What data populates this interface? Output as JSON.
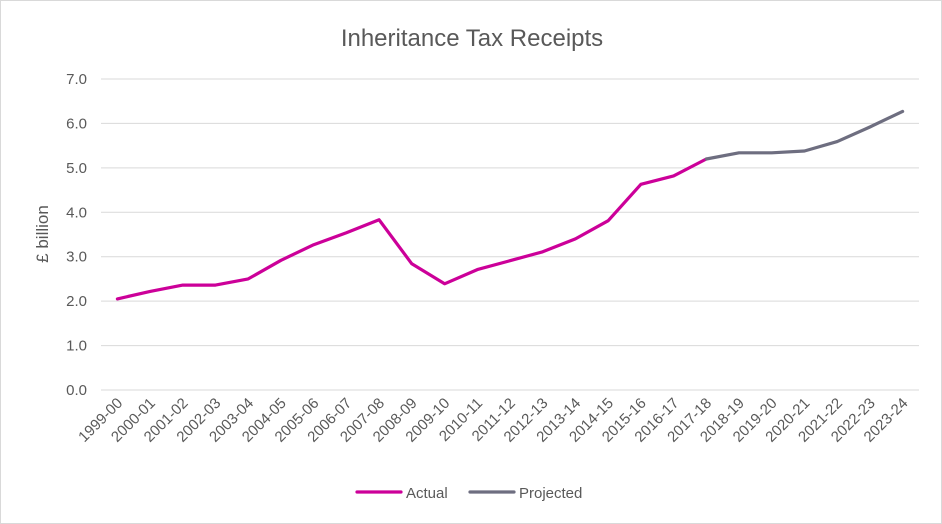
{
  "chart_data": {
    "type": "line",
    "title": "Inheritance Tax Receipts",
    "xlabel": "",
    "ylabel": "£ billion",
    "ylim": [
      0,
      7
    ],
    "yticks": [
      "0.0",
      "1.0",
      "2.0",
      "3.0",
      "4.0",
      "5.0",
      "6.0",
      "7.0"
    ],
    "grid": true,
    "legend_position": "bottom",
    "categories": [
      "1999-00",
      "2000-01",
      "2001-02",
      "2002-03",
      "2003-04",
      "2004-05",
      "2005-06",
      "2006-07",
      "2007-08",
      "2008-09",
      "2009-10",
      "2010-11",
      "2011-12",
      "2012-13",
      "2013-14",
      "2014-15",
      "2015-16",
      "2016-17",
      "2017-18",
      "2018-19",
      "2019-20",
      "2020-21",
      "2021-22",
      "2022-23",
      "2023-24"
    ],
    "series": [
      {
        "name": "Actual",
        "color": "#cc0099",
        "values": [
          2.05,
          2.22,
          2.36,
          2.36,
          2.5,
          2.92,
          3.27,
          3.54,
          3.83,
          2.84,
          2.39,
          2.71,
          2.91,
          3.11,
          3.4,
          3.81,
          4.63,
          4.82,
          5.2,
          null,
          null,
          null,
          null,
          null,
          null
        ]
      },
      {
        "name": "Projected",
        "color": "#6e6e80",
        "values": [
          null,
          null,
          null,
          null,
          null,
          null,
          null,
          null,
          null,
          null,
          null,
          null,
          null,
          null,
          null,
          null,
          null,
          null,
          5.2,
          5.34,
          5.34,
          5.38,
          5.59,
          5.92,
          6.27
        ]
      }
    ]
  }
}
